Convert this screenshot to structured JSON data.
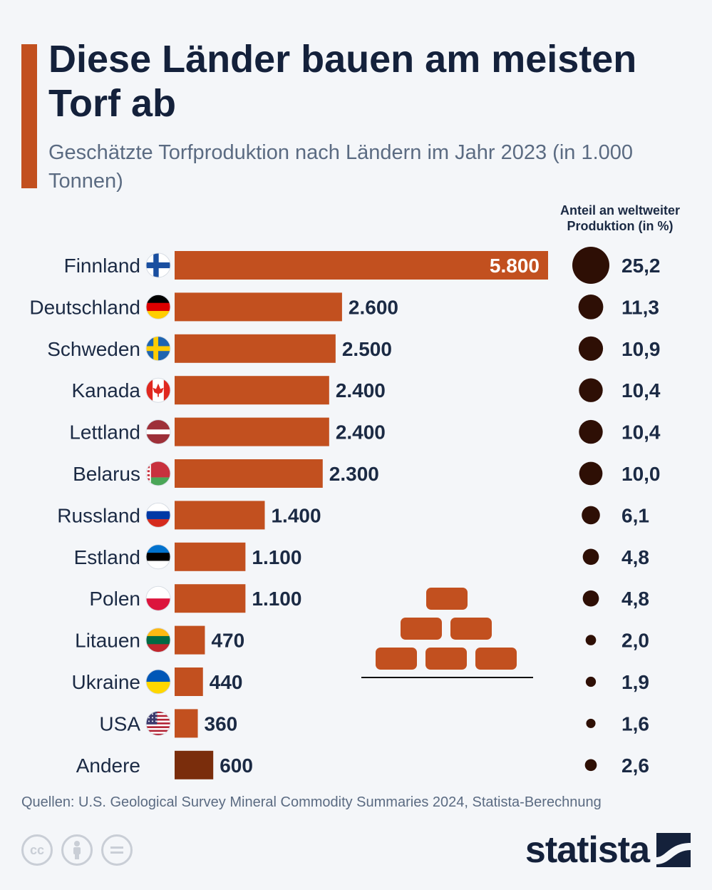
{
  "header": {
    "title": "Diese Länder bauen am meisten Torf ab",
    "subtitle": "Geschätzte Torfproduktion nach Ländern im Jahr 2023 (in 1.000 Tonnen)",
    "share_header": "Anteil an weltweiter Produktion (in %)"
  },
  "footer": {
    "source": "Quellen: U.S. Geological Survey Mineral Commodity Summaries 2024, Statista-Berechnung",
    "brand": "statista",
    "license_icons": [
      "cc-icon",
      "attribution-icon",
      "no-derivatives-icon"
    ]
  },
  "colors": {
    "bar": "#c2501f",
    "bar_other": "#7a2d0c",
    "bubble": "#2e0f05",
    "text": "#1b2a44",
    "accent": "#c2501f"
  },
  "chart_data": {
    "type": "bar",
    "orientation": "horizontal",
    "value_format": "de-thousands",
    "categories": [
      "Finnland",
      "Deutschland",
      "Schweden",
      "Kanada",
      "Lettland",
      "Belarus",
      "Russland",
      "Estland",
      "Polen",
      "Litauen",
      "Ukraine",
      "USA",
      "Andere"
    ],
    "flags": [
      "finland",
      "germany",
      "sweden",
      "canada",
      "latvia",
      "belarus",
      "russia",
      "estonia",
      "poland",
      "lithuania",
      "ukraine",
      "usa",
      ""
    ],
    "values": [
      5800,
      2600,
      2500,
      2400,
      2400,
      2300,
      1400,
      1100,
      1100,
      470,
      440,
      360,
      600
    ],
    "value_labels": [
      "5.800",
      "2.600",
      "2.500",
      "2.400",
      "2.400",
      "2.300",
      "1.400",
      "1.100",
      "1.100",
      "470",
      "440",
      "360",
      "600"
    ],
    "shares": [
      25.2,
      11.3,
      10.9,
      10.4,
      10.4,
      10.0,
      6.1,
      4.8,
      4.8,
      2.0,
      1.9,
      1.6,
      2.6
    ],
    "share_labels": [
      "25,2",
      "11,3",
      "10,9",
      "10,4",
      "10,4",
      "10,0",
      "6,1",
      "4,8",
      "4,8",
      "2,0",
      "1,9",
      "1,6",
      "2,6"
    ],
    "xlim": [
      0,
      5800
    ],
    "grid": false,
    "legend": "none"
  }
}
